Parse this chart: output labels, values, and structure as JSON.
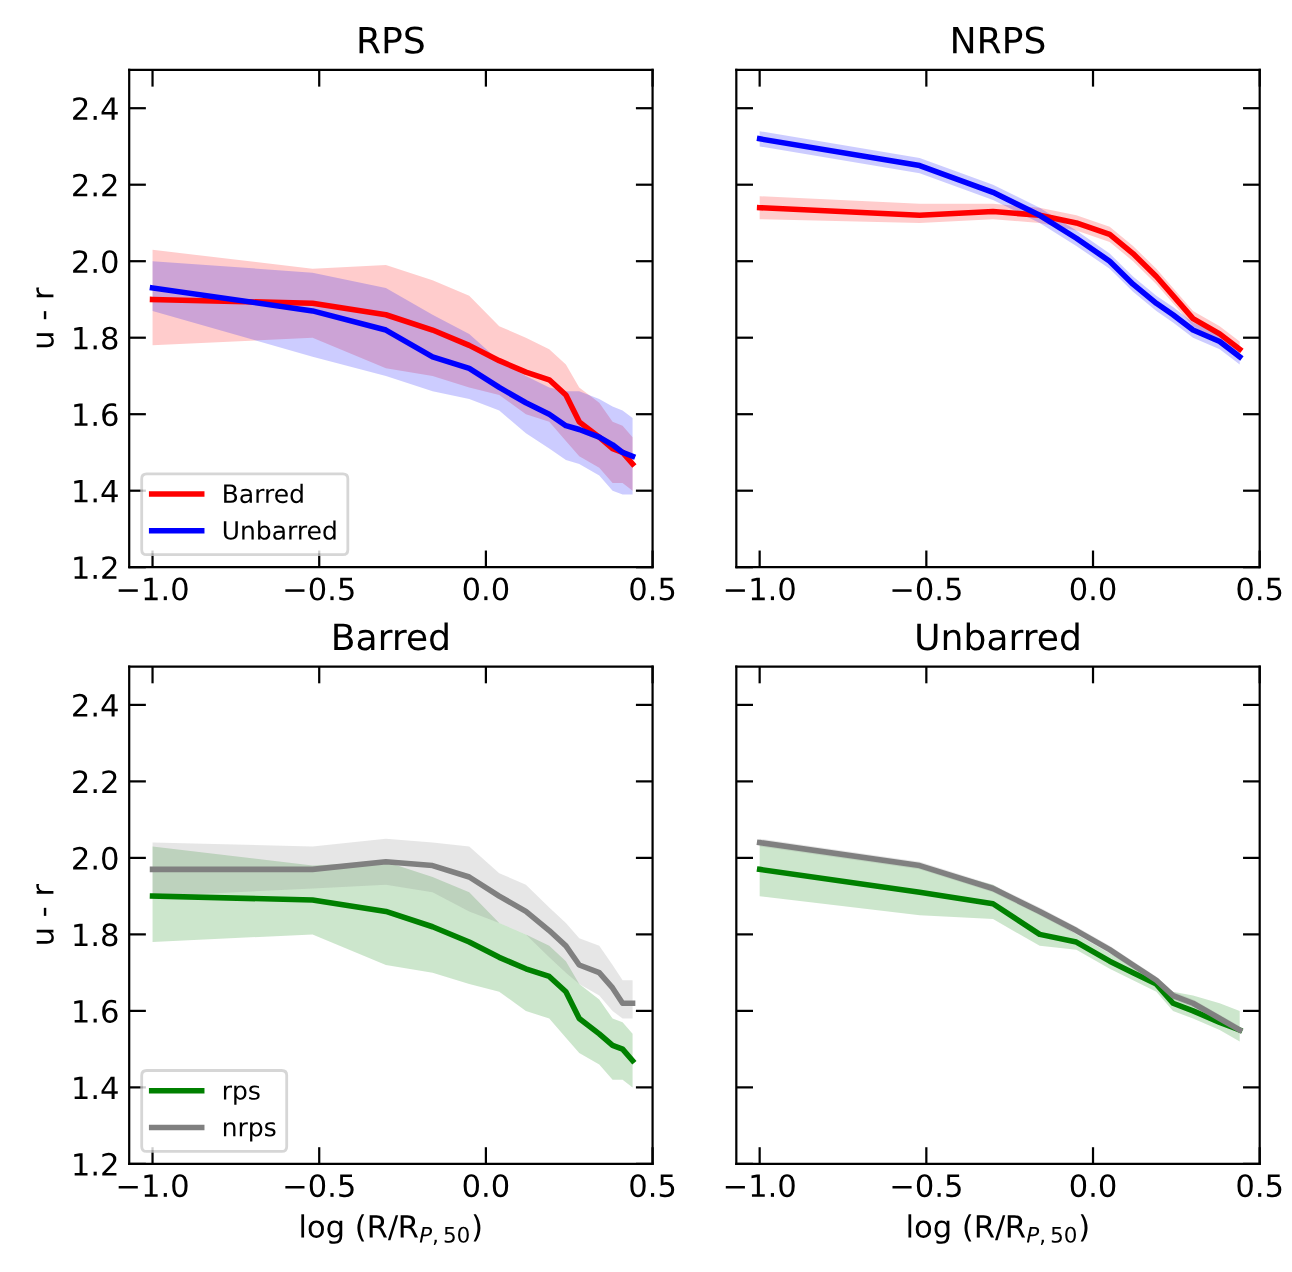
{
  "chart_data": [
    {
      "type": "line",
      "title": "RPS",
      "ylabel": "u - r",
      "xlim": [
        -1.07,
        0.5
      ],
      "xticks": [
        {
          "value": -1.0,
          "label": "−1.0"
        },
        {
          "value": -0.5,
          "label": "−0.5"
        },
        {
          "value": 0.0,
          "label": "0.0"
        },
        {
          "value": 0.5,
          "label": "0.5"
        }
      ],
      "ylim": [
        1.2,
        2.5
      ],
      "yticks": [
        1.2,
        1.4,
        1.6,
        1.8,
        {
          "value": 2.0,
          "label": "2.0"
        },
        2.2,
        2.4
      ],
      "grid": false,
      "legend": "lower left",
      "x": [
        -1.0,
        -0.52,
        -0.3,
        -0.16,
        -0.05,
        0.04,
        0.12,
        0.19,
        0.24,
        0.28,
        0.34,
        0.38,
        0.41,
        0.44
      ],
      "series": [
        {
          "name": "Barred",
          "color": "#ff0000",
          "values": [
            1.9,
            1.89,
            1.86,
            1.82,
            1.78,
            1.74,
            1.71,
            1.69,
            1.65,
            1.58,
            1.54,
            1.51,
            1.5,
            1.47
          ],
          "lower": [
            1.78,
            1.8,
            1.72,
            1.7,
            1.67,
            1.65,
            1.6,
            1.58,
            1.53,
            1.49,
            1.46,
            1.42,
            1.42,
            1.4
          ],
          "upper": [
            2.03,
            1.98,
            1.99,
            1.95,
            1.91,
            1.83,
            1.8,
            1.77,
            1.73,
            1.67,
            1.63,
            1.58,
            1.57,
            1.54
          ]
        },
        {
          "name": "Unbarred",
          "color": "#0000ff",
          "values": [
            1.93,
            1.87,
            1.82,
            1.75,
            1.72,
            1.67,
            1.63,
            1.6,
            1.57,
            1.56,
            1.54,
            1.52,
            1.5,
            1.49
          ],
          "lower": [
            1.87,
            1.75,
            1.7,
            1.66,
            1.64,
            1.61,
            1.55,
            1.51,
            1.48,
            1.47,
            1.44,
            1.4,
            1.39,
            1.39
          ],
          "upper": [
            2.0,
            1.97,
            1.93,
            1.86,
            1.81,
            1.74,
            1.7,
            1.67,
            1.66,
            1.66,
            1.64,
            1.62,
            1.61,
            1.59
          ]
        }
      ]
    },
    {
      "type": "line",
      "title": "NRPS",
      "xlim": [
        -1.07,
        0.5
      ],
      "xticks": [
        {
          "value": -1.0,
          "label": "−1.0"
        },
        {
          "value": -0.5,
          "label": "−0.5"
        },
        {
          "value": 0.0,
          "label": "0.0"
        },
        {
          "value": 0.5,
          "label": "0.5"
        }
      ],
      "ylim": [
        1.2,
        2.5
      ],
      "yticks": [
        1.2,
        1.4,
        1.6,
        1.8,
        2,
        2.2,
        2.4
      ],
      "grid": false,
      "tick_labels": "x",
      "x": [
        -1.0,
        -0.52,
        -0.3,
        -0.16,
        -0.05,
        0.05,
        0.12,
        0.19,
        0.24,
        0.3,
        0.38,
        0.44
      ],
      "series": [
        {
          "color": "#ff0000",
          "values": [
            2.14,
            2.12,
            2.13,
            2.12,
            2.1,
            2.07,
            2.02,
            1.96,
            1.91,
            1.85,
            1.81,
            1.77
          ],
          "lower": [
            2.11,
            2.1,
            2.11,
            2.1,
            2.08,
            2.05,
            2.0,
            1.94,
            1.89,
            1.83,
            1.79,
            1.75
          ],
          "upper": [
            2.17,
            2.15,
            2.15,
            2.14,
            2.12,
            2.09,
            2.04,
            1.98,
            1.93,
            1.87,
            1.83,
            1.79
          ]
        },
        {
          "color": "#0000ff",
          "values": [
            2.32,
            2.25,
            2.18,
            2.12,
            2.06,
            2.0,
            1.94,
            1.89,
            1.86,
            1.82,
            1.79,
            1.75
          ],
          "lower": [
            2.3,
            2.23,
            2.16,
            2.1,
            2.04,
            1.98,
            1.92,
            1.87,
            1.84,
            1.8,
            1.77,
            1.73
          ],
          "upper": [
            2.34,
            2.27,
            2.2,
            2.14,
            2.08,
            2.02,
            1.96,
            1.91,
            1.88,
            1.84,
            1.81,
            1.77
          ]
        }
      ]
    },
    {
      "type": "line",
      "title": "Barred",
      "xlabel": "log (R/R$_{P,50}$)",
      "ylabel": "u - r",
      "xlim": [
        -1.07,
        0.5
      ],
      "xticks": [
        {
          "value": -1.0,
          "label": "−1.0"
        },
        {
          "value": -0.5,
          "label": "−0.5"
        },
        {
          "value": 0.0,
          "label": "0.0"
        },
        {
          "value": 0.5,
          "label": "0.5"
        }
      ],
      "ylim": [
        1.2,
        2.5
      ],
      "yticks": [
        1.2,
        1.4,
        1.6,
        1.8,
        {
          "value": 2.0,
          "label": "2.0"
        },
        2.2,
        2.4
      ],
      "grid": false,
      "legend": "lower left",
      "x": [
        -1.0,
        -0.52,
        -0.3,
        -0.16,
        -0.05,
        0.04,
        0.12,
        0.19,
        0.24,
        0.28,
        0.34,
        0.38,
        0.41,
        0.44
      ],
      "series": [
        {
          "name": "rps",
          "color": "#008000",
          "values": [
            1.9,
            1.89,
            1.86,
            1.82,
            1.78,
            1.74,
            1.71,
            1.69,
            1.65,
            1.58,
            1.54,
            1.51,
            1.5,
            1.47
          ],
          "lower": [
            1.78,
            1.8,
            1.72,
            1.7,
            1.67,
            1.65,
            1.6,
            1.58,
            1.53,
            1.49,
            1.46,
            1.42,
            1.42,
            1.4
          ],
          "upper": [
            2.03,
            1.98,
            1.99,
            1.95,
            1.91,
            1.83,
            1.8,
            1.77,
            1.73,
            1.67,
            1.63,
            1.58,
            1.57,
            1.54
          ]
        },
        {
          "name": "nrps",
          "color": "#808080",
          "values": [
            1.97,
            1.97,
            1.99,
            1.98,
            1.95,
            1.9,
            1.86,
            1.81,
            1.77,
            1.72,
            1.7,
            1.66,
            1.62,
            1.62
          ],
          "lower": [
            1.9,
            1.92,
            1.93,
            1.91,
            1.86,
            1.83,
            1.8,
            1.74,
            1.7,
            1.67,
            1.64,
            1.6,
            1.58,
            1.58
          ],
          "upper": [
            2.04,
            2.03,
            2.05,
            2.04,
            2.03,
            1.96,
            1.93,
            1.87,
            1.83,
            1.79,
            1.77,
            1.72,
            1.68,
            1.68
          ]
        }
      ]
    },
    {
      "type": "line",
      "title": "Unbarred",
      "xlabel": "log (R/R$_{P,50}$)",
      "xlim": [
        -1.07,
        0.5
      ],
      "xticks": [
        {
          "value": -1.0,
          "label": "−1.0"
        },
        {
          "value": -0.5,
          "label": "−0.5"
        },
        {
          "value": 0.0,
          "label": "0.0"
        },
        {
          "value": 0.5,
          "label": "0.5"
        }
      ],
      "ylim": [
        1.2,
        2.5
      ],
      "yticks": [
        1.2,
        1.4,
        1.6,
        1.8,
        2,
        2.2,
        2.4
      ],
      "grid": false,
      "tick_labels": "x",
      "x": [
        -1.0,
        -0.52,
        -0.3,
        -0.16,
        -0.05,
        0.05,
        0.12,
        0.19,
        0.24,
        0.3,
        0.38,
        0.44
      ],
      "series": [
        {
          "color": "#008000",
          "values": [
            1.97,
            1.91,
            1.88,
            1.8,
            1.78,
            1.73,
            1.7,
            1.67,
            1.62,
            1.6,
            1.57,
            1.55
          ],
          "lower": [
            1.9,
            1.85,
            1.84,
            1.77,
            1.76,
            1.71,
            1.68,
            1.65,
            1.6,
            1.58,
            1.55,
            1.52
          ],
          "upper": [
            2.04,
            1.98,
            1.93,
            1.86,
            1.8,
            1.75,
            1.72,
            1.68,
            1.65,
            1.64,
            1.62,
            1.6
          ]
        },
        {
          "color": "#808080",
          "values": [
            2.04,
            1.98,
            1.92,
            1.86,
            1.81,
            1.76,
            1.72,
            1.68,
            1.64,
            1.62,
            1.58,
            1.55
          ],
          "lower": [
            2.03,
            1.97,
            1.91,
            1.85,
            1.8,
            1.75,
            1.71,
            1.67,
            1.63,
            1.61,
            1.57,
            1.54
          ],
          "upper": [
            2.05,
            1.99,
            1.93,
            1.87,
            1.82,
            1.77,
            1.73,
            1.69,
            1.65,
            1.63,
            1.59,
            1.56
          ]
        }
      ]
    }
  ]
}
